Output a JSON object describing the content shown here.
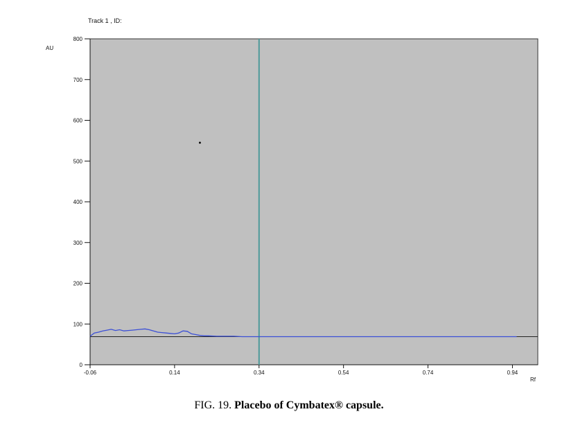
{
  "caption": {
    "prefix": "FIG. 19.",
    "title": "Placebo of Cymbatex® capsule."
  },
  "chart_data": {
    "type": "line",
    "title": "Track  1 , ID:",
    "ylabel": "AU",
    "xlabel": "Rf",
    "xlim": [
      -0.06,
      1.0
    ],
    "ylim": [
      0,
      800
    ],
    "x_ticks": [
      -0.06,
      0.14,
      0.34,
      0.54,
      0.74,
      0.94
    ],
    "x_tick_labels": [
      "-0.06",
      "0.14",
      "0.34",
      "0.54",
      "0.74",
      "0.94"
    ],
    "y_ticks": [
      0,
      100,
      200,
      300,
      400,
      500,
      600,
      700,
      800
    ],
    "y_tick_labels": [
      "0",
      "100",
      "200",
      "300",
      "400",
      "500",
      "600",
      "700",
      "800"
    ],
    "grid": false,
    "plot_background": "#c0c0c0",
    "series": [
      {
        "color": "#3b4fd6",
        "x": [
          -0.06,
          -0.05,
          -0.04,
          -0.03,
          -0.02,
          -0.01,
          0.0,
          0.01,
          0.02,
          0.03,
          0.04,
          0.05,
          0.06,
          0.07,
          0.08,
          0.09,
          0.1,
          0.11,
          0.12,
          0.13,
          0.14,
          0.15,
          0.16,
          0.17,
          0.18,
          0.19,
          0.2,
          0.21,
          0.22,
          0.24,
          0.26,
          0.28,
          0.3,
          0.32,
          0.34,
          0.36,
          0.4,
          0.5,
          0.6,
          0.7,
          0.8,
          0.9,
          0.95
        ],
        "y": [
          70,
          78,
          80,
          83,
          85,
          87,
          84,
          86,
          83,
          84,
          85,
          86,
          87,
          88,
          86,
          83,
          80,
          79,
          78,
          77,
          76,
          78,
          83,
          82,
          76,
          74,
          72,
          71,
          71,
          70,
          70,
          70,
          69,
          69,
          69,
          69,
          69,
          69,
          69,
          69,
          69,
          69,
          69
        ]
      }
    ],
    "baseline": {
      "y": 69,
      "color": "#222222"
    },
    "marker_line": {
      "x": 0.34,
      "color": "#4d9a9a"
    },
    "dot": {
      "x": 0.2,
      "y": 545
    }
  }
}
